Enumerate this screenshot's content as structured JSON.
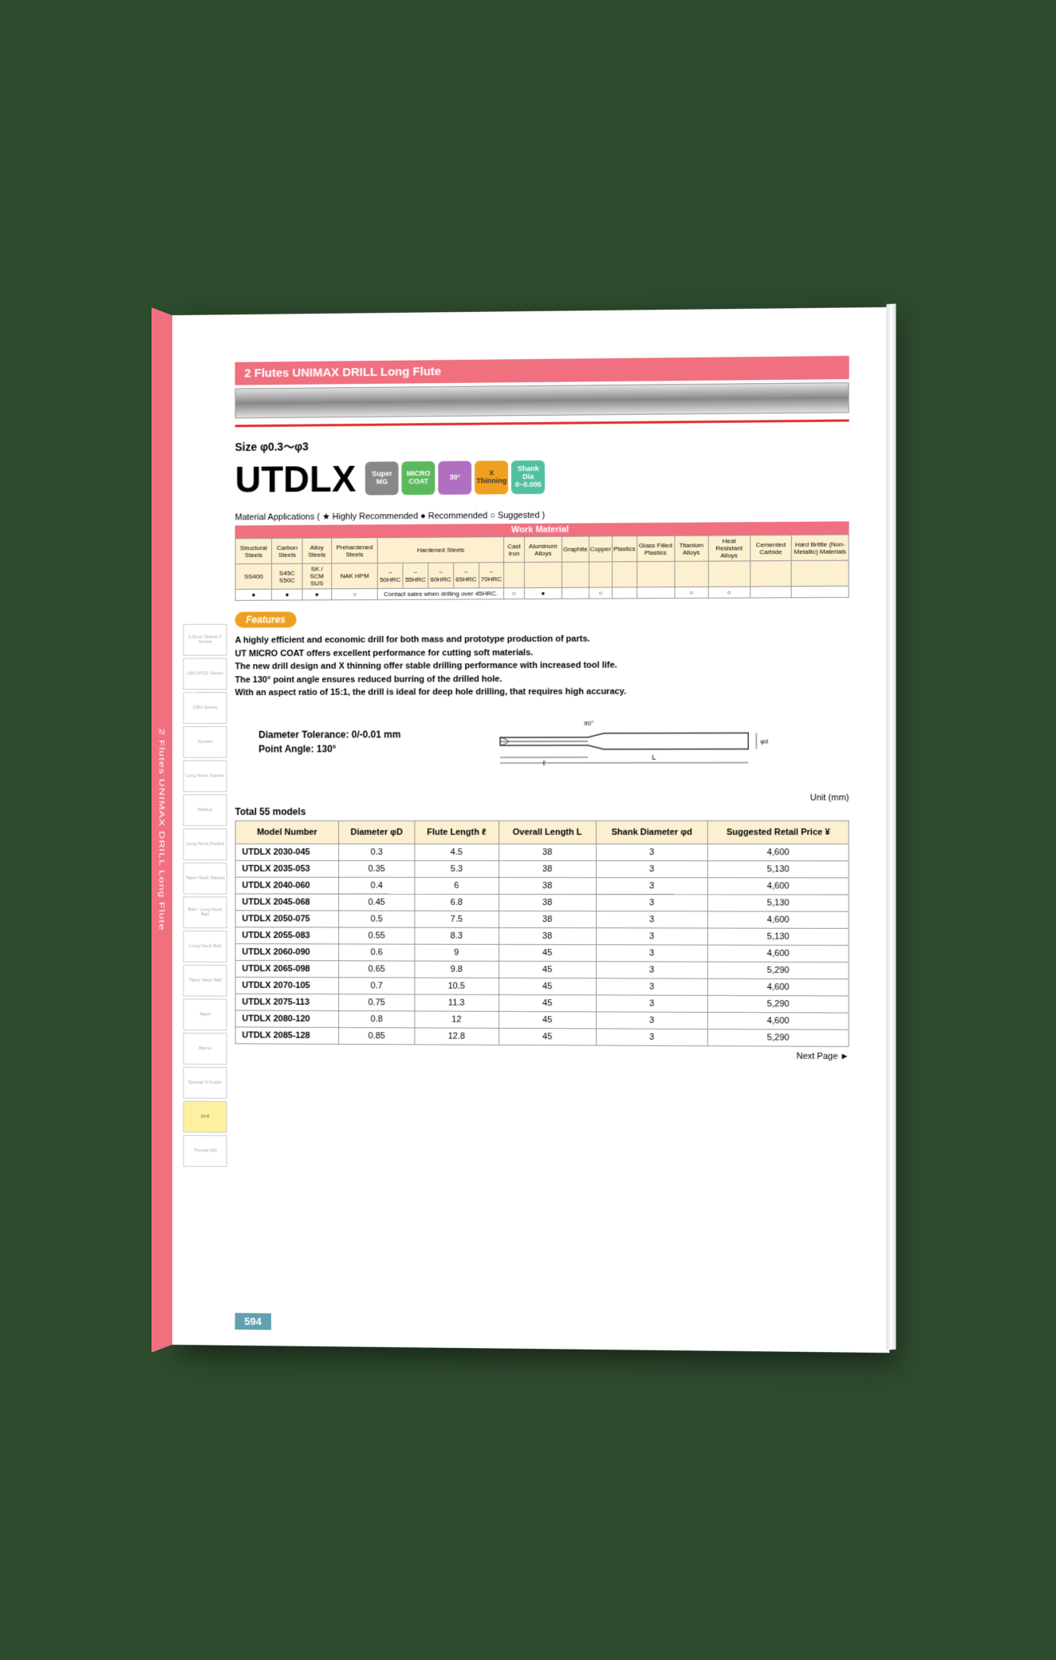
{
  "spine": {
    "text": "2 Flutes UNIMAX DRILL Long Flute"
  },
  "header": {
    "title": "2 Flutes   UNIMAX DRILL Long Flute"
  },
  "size": "Size  φ0.3～φ3",
  "product": "UTDLX",
  "badges": [
    {
      "cls": "b1",
      "label": "Super MG"
    },
    {
      "cls": "b2",
      "label": "MICRO COAT"
    },
    {
      "cls": "b3",
      "label": "30°"
    },
    {
      "cls": "b4",
      "label": "X Thinning"
    },
    {
      "cls": "b5",
      "label": "Shank Dia 0~0.005"
    }
  ],
  "material": {
    "legend": "Material Applications  ( ★ Highly Recommended    ● Recommended   ○ Suggested )",
    "work_header": "Work Material",
    "top_groups": [
      "Structural Steels",
      "Carbon Steels",
      "Alloy Steels",
      "Prehardened Steels",
      "Hardened Steels",
      "Cast Iron",
      "Aluminum Alloys",
      "Graphite",
      "Copper",
      "Plastics",
      "Glass Filled Plastics",
      "Titanium Alloys",
      "Heat Resistant Alloys",
      "Cemented Carbide",
      "Hard Brittle (Non-Metallic) Materials"
    ],
    "sub": [
      "SS400",
      "S45C S50C",
      "SK / SCM SUS",
      "NAK HPM",
      "~ 50HRC",
      "~ 55HRC",
      "~ 60HRC",
      "~ 65HRC",
      "~ 70HRC"
    ],
    "contact_note": "Contact sales when drilling over 45HRC.",
    "marks": [
      "●",
      "●",
      "●",
      "○",
      "",
      "○",
      "●",
      "",
      "○",
      "",
      "",
      "○",
      "○",
      "",
      ""
    ]
  },
  "features": {
    "label": "Features",
    "lines": [
      "A highly efficient and economic drill for both mass and prototype production of parts.",
      "UT MICRO COAT offers excellent performance for cutting soft materials.",
      "The new drill design and X thinning offer stable drilling performance with increased tool life.",
      "The 130° point angle ensures reduced burring of the drilled hole.",
      "With an aspect ratio of 15:1, the drill is ideal for deep hole drilling, that requires high accuracy."
    ]
  },
  "tolerance": {
    "line1": "Diameter Tolerance: 0/-0.01 mm",
    "line2": "Point Angle: 130°"
  },
  "unit": "Unit (mm)",
  "total": "Total 55 models",
  "table": {
    "columns": [
      "Model Number",
      "Diameter φD",
      "Flute Length ℓ",
      "Overall Length L",
      "Shank Diameter φd",
      "Suggested Retail Price ¥"
    ],
    "rows": [
      [
        "UTDLX 2030-045",
        "0.3",
        "4.5",
        "38",
        "3",
        "4,600"
      ],
      [
        "UTDLX 2035-053",
        "0.35",
        "5.3",
        "38",
        "3",
        "5,130"
      ],
      [
        "UTDLX 2040-060",
        "0.4",
        "6",
        "38",
        "3",
        "4,600"
      ],
      [
        "UTDLX 2045-068",
        "0.45",
        "6.8",
        "38",
        "3",
        "5,130"
      ],
      [
        "UTDLX 2050-075",
        "0.5",
        "7.5",
        "38",
        "3",
        "4,600"
      ],
      [
        "UTDLX 2055-083",
        "0.55",
        "8.3",
        "38",
        "3",
        "5,130"
      ],
      [
        "UTDLX 2060-090",
        "0.6",
        "9",
        "45",
        "3",
        "4,600"
      ],
      [
        "UTDLX 2065-098",
        "0.65",
        "9.8",
        "45",
        "3",
        "5,290"
      ],
      [
        "UTDLX 2070-105",
        "0.7",
        "10.5",
        "45",
        "3",
        "4,600"
      ],
      [
        "UTDLX 2075-113",
        "0.75",
        "11.3",
        "45",
        "3",
        "5,290"
      ],
      [
        "UTDLX 2080-120",
        "0.8",
        "12",
        "45",
        "3",
        "4,600"
      ],
      [
        "UTDLX 2085-128",
        "0.85",
        "12.8",
        "45",
        "3",
        "5,290"
      ]
    ]
  },
  "next_page": "Next Page  ►",
  "page_num": "594",
  "side_tabs": [
    "2.5mm Shank V Series",
    "UDC/PCD Series",
    "CBN Series",
    "Square",
    "Long Neck Square",
    "Radius",
    "Long Neck Radius",
    "Taper Neck Radius",
    "Ball / Long Neck Ball",
    "Long Neck Ball",
    "Taper Neck Ball",
    "Taper",
    "Barrel",
    "Special V-Cutter",
    "Drill",
    "Thread Mill"
  ],
  "active_tab_index": 14
}
